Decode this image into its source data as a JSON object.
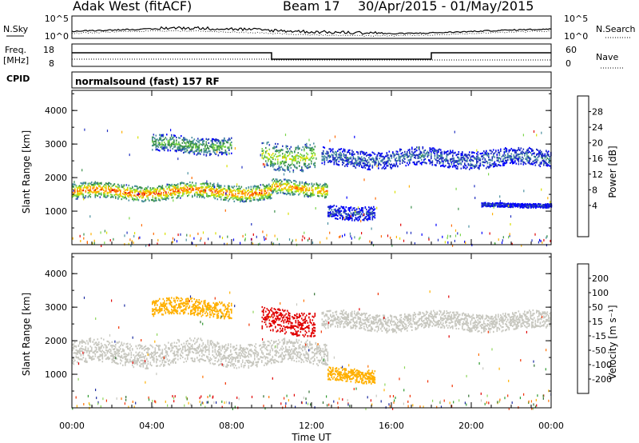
{
  "header": {
    "title": "Adak West (fitACF)",
    "beam": "Beam 17",
    "date_range": "30/Apr/2015 - 01/May/2015"
  },
  "top_panels": {
    "nsky_label": "N.Sky",
    "nsky_ticks": [
      "10^5",
      "10^0"
    ],
    "nsearch_label": "N.Search",
    "nsearch_ticks": [
      "10^5",
      "10^0"
    ],
    "freq_label": "Freq.",
    "freq_unit": "[MHz]",
    "freq_ticks": [
      "18",
      "8"
    ],
    "nave_label": "Nave",
    "nave_ticks": [
      "60",
      "0"
    ],
    "cpid_label": "CPID",
    "cpid_text": "normalsound (fast) 157 RF"
  },
  "panels": {
    "power": {
      "ylabel": "Slant Range [km]",
      "yticks": [
        "4000",
        "3000",
        "2000",
        "1000"
      ],
      "colorbar_label": "Power [dB]",
      "colorbar_ticks": [
        "28",
        "24",
        "20",
        "16",
        "12",
        "8",
        "4"
      ],
      "colors": [
        "#e00000",
        "#ff6a00",
        "#ffb000",
        "#d9e000",
        "#7ad64a",
        "#3a8f4a",
        "#4a8fa0",
        "#2030c0",
        "#0000ff"
      ]
    },
    "velocity": {
      "ylabel": "Slant Range [km]",
      "yticks": [
        "4000",
        "3000",
        "2000",
        "1000"
      ],
      "colorbar_label": "Velocity [m s⁻¹]",
      "colorbar_ticks": [
        "200",
        "100",
        "50",
        "15",
        "-15",
        "-50",
        "-100",
        "-200"
      ],
      "colors": [
        "#1a2aa0",
        "#2f6f2f",
        "#2e9a2e",
        "#8ed65a",
        "#c8c8c0",
        "#ffb000",
        "#ff7000",
        "#f03000",
        "#e00000"
      ]
    }
  },
  "xaxis": {
    "ticks": [
      "00:00",
      "04:00",
      "08:00",
      "12:00",
      "16:00",
      "20:00",
      "00:00"
    ],
    "label": "Time UT"
  },
  "chart_data": [
    {
      "type": "heatmap",
      "name": "Power",
      "x_unit": "hours UT",
      "xlim": [
        0,
        24
      ],
      "ylim": [
        0,
        4600
      ],
      "value_range": [
        0,
        30
      ],
      "bands": [
        {
          "x": [
            0,
            10
          ],
          "y_center": 1600,
          "y_halfwidth": 230,
          "value": 26
        },
        {
          "x": [
            10,
            12.8
          ],
          "y_center": 1700,
          "y_halfwidth": 220,
          "value": 24
        },
        {
          "x": [
            4,
            8
          ],
          "y_center": 3000,
          "y_halfwidth": 250,
          "value": 14
        },
        {
          "x": [
            9.5,
            12.2
          ],
          "y_center": 2700,
          "y_halfwidth": 400,
          "value": 18
        },
        {
          "x": [
            12.5,
            24
          ],
          "y_center": 2600,
          "y_halfwidth": 260,
          "value": 8
        },
        {
          "x": [
            12.8,
            15.2
          ],
          "y_center": 1000,
          "y_halfwidth": 200,
          "value": 6
        },
        {
          "x": [
            20.5,
            24
          ],
          "y_center": 1200,
          "y_halfwidth": 60,
          "value": 5
        }
      ]
    },
    {
      "type": "heatmap",
      "name": "Velocity",
      "x_unit": "hours UT",
      "xlim": [
        0,
        24
      ],
      "ylim": [
        0,
        4600
      ],
      "value_range": [
        -200,
        200
      ],
      "bands": [
        {
          "x": [
            0,
            12.8
          ],
          "y_center": 1650,
          "y_halfwidth": 350,
          "value": 0
        },
        {
          "x": [
            4,
            8
          ],
          "y_center": 3000,
          "y_halfwidth": 250,
          "value": -40
        },
        {
          "x": [
            9.5,
            12.2
          ],
          "y_center": 2600,
          "y_halfwidth": 350,
          "value": -180
        },
        {
          "x": [
            12.5,
            24
          ],
          "y_center": 2600,
          "y_halfwidth": 260,
          "value": 5
        },
        {
          "x": [
            12.8,
            15.2
          ],
          "y_center": 1000,
          "y_halfwidth": 200,
          "value": -50
        }
      ]
    }
  ]
}
